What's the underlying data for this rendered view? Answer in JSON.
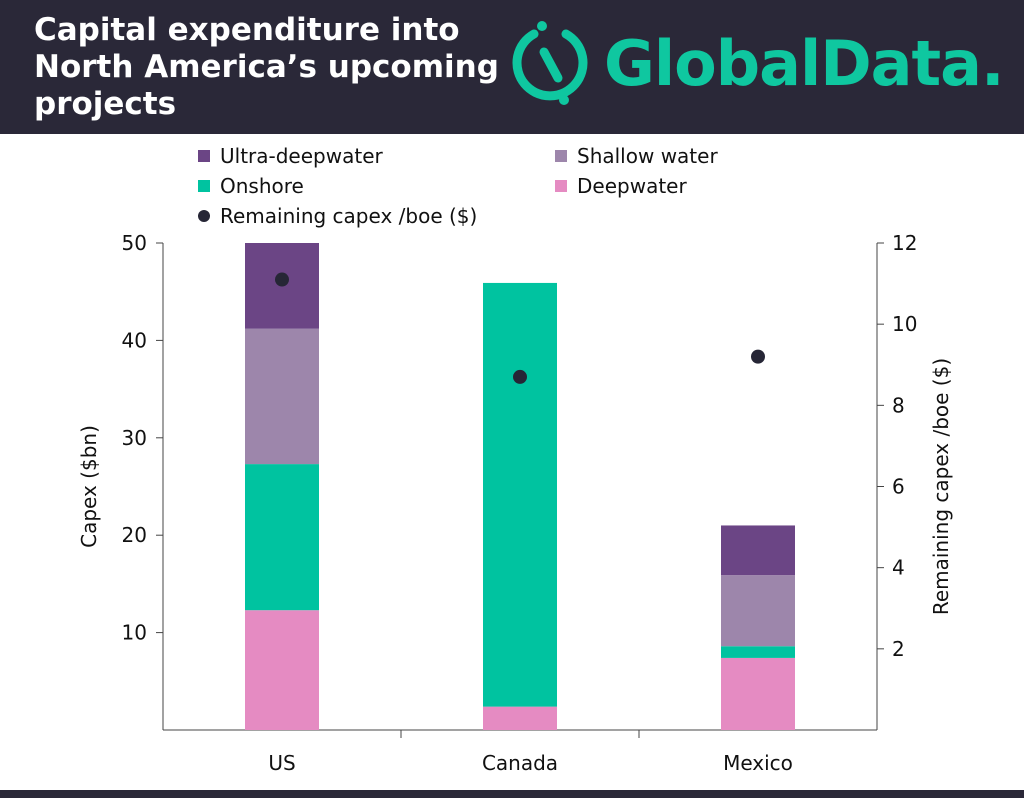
{
  "header": {
    "title": "Capital expenditure into North America’s upcoming projects",
    "logo_text": "GlobalData."
  },
  "colors": {
    "header_bg": "#2a2838",
    "brand": "#0fc7a0",
    "Ultra-deepwater": "#6b4585",
    "Shallow water": "#9d86ab",
    "Onshore": "#00c3a0",
    "Deepwater": "#e58bc2",
    "Remaining capex /boe ($)": "#262636"
  },
  "legend": [
    "Ultra-deepwater",
    "Shallow water",
    "Onshore",
    "Deepwater",
    "Remaining capex /boe ($)"
  ],
  "chart_data": {
    "type": "bar",
    "stacked": true,
    "categories": [
      "US",
      "Canada",
      "Mexico"
    ],
    "series": [
      {
        "name": "Deepwater",
        "values": [
          12.3,
          2.4,
          7.4
        ]
      },
      {
        "name": "Onshore",
        "values": [
          15.0,
          43.5,
          1.2
        ]
      },
      {
        "name": "Shallow water",
        "values": [
          13.9,
          0,
          7.3
        ]
      },
      {
        "name": "Ultra-deepwater",
        "values": [
          8.8,
          0,
          5.1
        ]
      }
    ],
    "secondary_series": {
      "name": "Remaining capex /boe ($)",
      "type": "scatter",
      "values": [
        11.1,
        8.7,
        9.2
      ]
    },
    "ylabel": "Capex ($bn)",
    "y2label": "Remaining capex /boe ($)",
    "ylim": [
      0,
      50
    ],
    "y2lim": [
      0,
      12
    ],
    "yticks": [
      10,
      20,
      30,
      40,
      50
    ],
    "y2ticks": [
      2,
      4,
      6,
      8,
      10,
      12
    ],
    "legend_position": "top"
  }
}
